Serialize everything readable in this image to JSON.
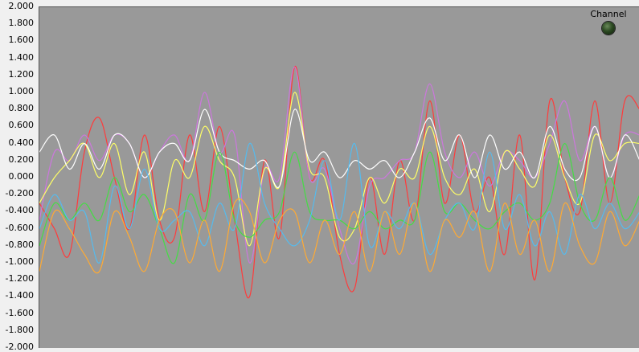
{
  "indicator": {
    "label": "Channel",
    "led_color": "#2c4a22"
  },
  "chart_data": {
    "type": "line",
    "ylim": [
      -2.0,
      2.0
    ],
    "yticks": [
      "2.000",
      "1.800",
      "1.600",
      "1.400",
      "1.200",
      "1.000",
      "0.800",
      "0.600",
      "0.400",
      "0.200",
      "0.000",
      "-0.200",
      "-0.400",
      "-0.600",
      "-0.800",
      "-1.000",
      "-1.200",
      "-1.400",
      "-1.600",
      "-1.800",
      "-2.000"
    ],
    "x": [
      0,
      1,
      2,
      3,
      4,
      5,
      6,
      7,
      8,
      9,
      10,
      11,
      12,
      13,
      14,
      15,
      16,
      17,
      18,
      19,
      20,
      21,
      22,
      23,
      24,
      25,
      26,
      27,
      28,
      29,
      30,
      31,
      32,
      33,
      34,
      35,
      36,
      37,
      38,
      39,
      40
    ],
    "grid": false,
    "background": "#999999",
    "series": [
      {
        "color": "#ff3b3b",
        "values": [
          -0.3,
          -0.6,
          -0.9,
          0.3,
          0.7,
          0.0,
          -0.6,
          0.5,
          -0.5,
          -0.7,
          0.5,
          -0.4,
          0.6,
          -0.5,
          -1.4,
          0.2,
          -0.7,
          1.3,
          0.0,
          0.2,
          -0.9,
          -1.3,
          0.0,
          -0.9,
          0.2,
          -0.5,
          0.9,
          -0.3,
          0.5,
          -0.4,
          0.0,
          -0.9,
          0.5,
          -1.2,
          0.9,
          0.0,
          -0.4,
          0.9,
          -0.3,
          0.9,
          0.8
        ]
      },
      {
        "color": "#cc77dd",
        "values": [
          -0.5,
          0.3,
          0.2,
          0.5,
          0.2,
          0.5,
          0.4,
          0.0,
          0.3,
          0.5,
          0.2,
          1.0,
          0.3,
          0.5,
          -1.0,
          0.1,
          0.0,
          1.3,
          0.0,
          0.1,
          -0.6,
          -1.0,
          -0.1,
          0.0,
          0.2,
          0.3,
          1.1,
          0.3,
          0.0,
          0.3,
          -0.1,
          0.3,
          0.2,
          0.0,
          0.4,
          0.9,
          0.2,
          0.6,
          0.0,
          0.5,
          0.5
        ]
      },
      {
        "color": "#ffff66",
        "values": [
          -0.3,
          0.0,
          0.2,
          0.4,
          0.0,
          0.4,
          -0.2,
          0.3,
          -0.5,
          0.2,
          0.0,
          0.6,
          0.2,
          0.0,
          -0.8,
          0.1,
          -0.1,
          1.0,
          0.1,
          0.0,
          -0.7,
          -0.6,
          0.0,
          -0.3,
          0.1,
          0.0,
          0.6,
          0.0,
          -0.2,
          0.1,
          -0.4,
          0.3,
          0.1,
          -0.1,
          0.5,
          0.0,
          -0.3,
          0.5,
          0.2,
          0.4,
          0.4
        ]
      },
      {
        "color": "#ffffff",
        "values": [
          0.3,
          0.5,
          0.1,
          0.4,
          0.1,
          0.5,
          0.4,
          0.0,
          0.3,
          0.4,
          0.2,
          0.8,
          0.3,
          0.2,
          0.1,
          0.2,
          -0.1,
          0.8,
          0.2,
          0.3,
          0.0,
          0.2,
          0.1,
          0.2,
          0.0,
          0.3,
          0.7,
          0.2,
          0.5,
          0.0,
          0.5,
          0.1,
          0.3,
          0.0,
          0.6,
          0.1,
          0.0,
          0.6,
          0.0,
          0.5,
          0.2
        ]
      },
      {
        "color": "#44dd44",
        "values": [
          -0.8,
          -0.3,
          -0.5,
          -0.3,
          -0.5,
          0.0,
          -0.4,
          -0.2,
          -0.6,
          -1.0,
          -0.2,
          -0.5,
          0.3,
          -0.5,
          -0.7,
          -0.5,
          -0.4,
          0.3,
          -0.4,
          -0.5,
          -0.5,
          -0.6,
          -0.4,
          -0.6,
          -0.5,
          -0.5,
          0.3,
          -0.4,
          -0.3,
          -0.5,
          -0.6,
          -0.4,
          -0.3,
          -0.5,
          -0.3,
          0.4,
          -0.3,
          -0.5,
          0.0,
          -0.5,
          -0.2
        ]
      },
      {
        "color": "#55bbee",
        "values": [
          -0.6,
          -0.2,
          -0.5,
          -0.4,
          -1.0,
          -0.1,
          -0.6,
          0.1,
          -0.6,
          -0.5,
          -0.4,
          -0.8,
          -0.3,
          -0.6,
          0.4,
          -0.3,
          -0.6,
          -0.8,
          -0.5,
          0.2,
          -0.5,
          0.4,
          -0.8,
          -0.4,
          -0.6,
          -0.3,
          -0.9,
          -0.5,
          -0.3,
          -0.6,
          0.3,
          -0.6,
          -0.2,
          -0.8,
          -0.4,
          -0.9,
          -0.2,
          -0.6,
          -0.3,
          -0.6,
          -0.4
        ]
      },
      {
        "color": "#ffaa33",
        "values": [
          -1.1,
          -0.4,
          -0.6,
          -0.9,
          -1.1,
          -0.4,
          -0.7,
          -1.1,
          -0.5,
          -0.4,
          -1.0,
          -0.5,
          -1.1,
          -0.3,
          -0.4,
          -1.0,
          -0.5,
          -0.4,
          -1.0,
          -0.5,
          -0.9,
          -0.4,
          -1.1,
          -0.4,
          -0.9,
          -0.3,
          -1.1,
          -0.5,
          -0.7,
          -0.4,
          -1.1,
          -0.3,
          -0.9,
          -0.5,
          -1.1,
          -0.3,
          -0.8,
          -1.0,
          -0.4,
          -0.8,
          -0.5
        ]
      }
    ]
  }
}
